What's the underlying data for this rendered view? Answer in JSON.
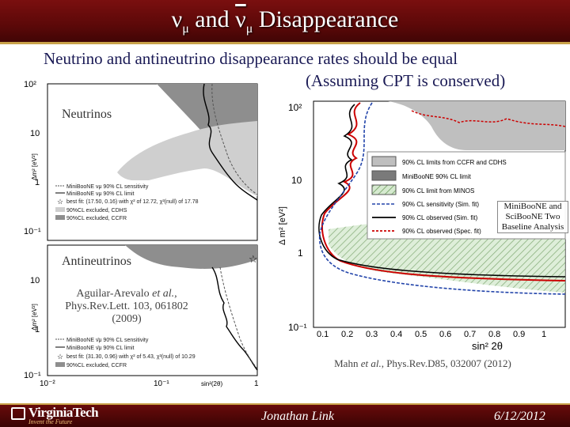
{
  "title": {
    "nu": "ν",
    "mu": "μ",
    "and": "and",
    "nubar": "ν",
    "mu2": "μ",
    "rest": "Disappearance"
  },
  "subtitle": {
    "line1": "Neutrino and antineutrino disappearance rates should be equal",
    "line2": "(Assuming CPT is conserved)"
  },
  "left_top": {
    "panel_label": "Neutrinos",
    "y_ticks": [
      "10²",
      "10",
      "1",
      "10⁻¹"
    ],
    "ylabel": "Δm² [eV²]",
    "legend": [
      "MiniBooNE νμ 90% CL sensitivity",
      "MiniBooNE νμ 90% CL limit",
      "best fit: (17.50, 0.16) with χ² of 12.72, χ²(null) of 17.78",
      "90%CL excluded, CDHS",
      "90%CL excluded, CCFR"
    ]
  },
  "left_bottom": {
    "panel_label": "Antineutrinos",
    "y_ticks": [
      "10",
      "1",
      "10⁻¹"
    ],
    "x_ticks": [
      "10⁻²",
      "10⁻¹",
      "1"
    ],
    "xlabel": "sin²(2θ)",
    "ylabel": "Δm² [eV²]",
    "legend": [
      "MiniBooNE ν̄μ 90% CL sensitivity",
      "MiniBooNE ν̄μ 90% CL limit",
      "best fit: (31.30, 0.96) with χ² of 5.43, χ²(null) of 10.29",
      "90%CL excluded, CCFR"
    ],
    "citation": {
      "line1a": "Aguilar-Arevalo ",
      "line1b": "et al.",
      "line1c": ",",
      "line2": "Phys.Rev.Lett. 103, 061802",
      "line3": "(2009)"
    }
  },
  "right": {
    "ylabel": "Δ m² [eV²]",
    "xlabel": "sin² 2θ",
    "y_ticks": [
      "10²",
      "10",
      "1",
      "10⁻¹"
    ],
    "x_ticks": [
      "0.1",
      "0.2",
      "0.3",
      "0.4",
      "0.5",
      "0.6",
      "0.7",
      "0.8",
      "0.9",
      "1"
    ],
    "legend": [
      "90% CL limits from CCFR and CDHS",
      "MiniBooNE 90% CL limit",
      "90% CL limit from MINOS",
      "90% CL sensitivity (Sim. fit)",
      "90% CL observed (Sim. fit)",
      "90% CL observed (Spec. fit)"
    ],
    "note": [
      "MiniBooNE and",
      "SciBooNE Two",
      "Baseline Analysis"
    ],
    "citation": {
      "a": "Mahn ",
      "b": "et al.",
      "c": ", Phys.Rev.D85, 032007 (2012)"
    }
  },
  "footer": {
    "logo": "VirginiaTech",
    "tagline": "Invent the Future",
    "presenter": "Jonathan Link",
    "date": "6/12/2012"
  },
  "colors": {
    "maroon": "#660000",
    "gold": "#c9a24a",
    "grey_region": "#bfbfbf"
  }
}
